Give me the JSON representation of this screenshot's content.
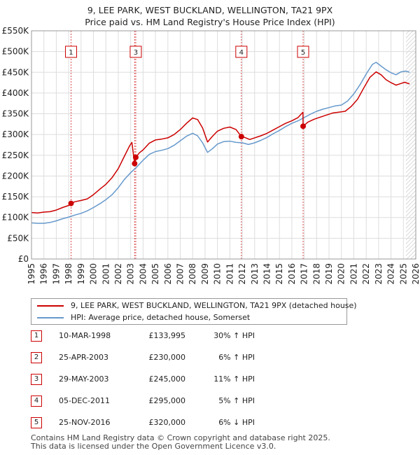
{
  "title_line1": "9, LEE PARK, WEST BUCKLAND, WELLINGTON, TA21 9PX",
  "title_line2": "Price paid vs. HM Land Registry's House Price Index (HPI)",
  "colors": {
    "property": "#cc0000",
    "hpi": "#6699cc",
    "marker_border": "#cc0000",
    "grid": "#dddddd"
  },
  "chart_data": {
    "type": "line",
    "xlim": [
      1995,
      2026
    ],
    "ylim": [
      0,
      550000
    ],
    "y_ticks": [
      {
        "value": 0,
        "label": "£0"
      },
      {
        "value": 50000,
        "label": "£50K"
      },
      {
        "value": 100000,
        "label": "£100K"
      },
      {
        "value": 150000,
        "label": "£150K"
      },
      {
        "value": 200000,
        "label": "£200K"
      },
      {
        "value": 250000,
        "label": "£250K"
      },
      {
        "value": 300000,
        "label": "£300K"
      },
      {
        "value": 350000,
        "label": "£350K"
      },
      {
        "value": 400000,
        "label": "£400K"
      },
      {
        "value": 450000,
        "label": "£450K"
      },
      {
        "value": 500000,
        "label": "£500K"
      },
      {
        "value": 550000,
        "label": "£550K"
      }
    ],
    "x_ticks": [
      "1995",
      "1996",
      "1997",
      "1998",
      "1999",
      "2000",
      "2001",
      "2002",
      "2003",
      "2004",
      "2005",
      "2006",
      "2007",
      "2008",
      "2009",
      "2010",
      "2011",
      "2012",
      "2013",
      "2014",
      "2015",
      "2016",
      "2017",
      "2018",
      "2019",
      "2020",
      "2021",
      "2022",
      "2023",
      "2024",
      "2025",
      "2026"
    ],
    "hatch_from": 2025.2,
    "series": [
      {
        "name": "9, LEE PARK, WEST BUCKLAND, WELLINGTON, TA21 9PX (detached house)",
        "color": "#cc0000",
        "points": [
          [
            1995.0,
            112000
          ],
          [
            1995.5,
            111000
          ],
          [
            1996.0,
            113000
          ],
          [
            1996.5,
            114000
          ],
          [
            1997.0,
            118000
          ],
          [
            1997.5,
            124000
          ],
          [
            1998.0,
            129000
          ],
          [
            1998.19,
            133995
          ],
          [
            1998.5,
            138000
          ],
          [
            1999.0,
            141000
          ],
          [
            1999.5,
            145000
          ],
          [
            2000.0,
            155000
          ],
          [
            2000.5,
            168000
          ],
          [
            2001.0,
            180000
          ],
          [
            2001.5,
            196000
          ],
          [
            2002.0,
            218000
          ],
          [
            2002.5,
            248000
          ],
          [
            2002.9,
            272000
          ],
          [
            2003.1,
            281000
          ],
          [
            2003.32,
            230000
          ],
          [
            2003.41,
            245000
          ],
          [
            2003.7,
            256000
          ],
          [
            2004.0,
            263000
          ],
          [
            2004.5,
            279000
          ],
          [
            2005.0,
            287000
          ],
          [
            2005.5,
            289000
          ],
          [
            2006.0,
            292000
          ],
          [
            2006.5,
            300000
          ],
          [
            2007.0,
            312000
          ],
          [
            2007.5,
            327000
          ],
          [
            2008.0,
            340000
          ],
          [
            2008.4,
            336000
          ],
          [
            2008.8,
            316000
          ],
          [
            2009.2,
            282000
          ],
          [
            2009.6,
            296000
          ],
          [
            2010.0,
            308000
          ],
          [
            2010.5,
            315000
          ],
          [
            2011.0,
            318000
          ],
          [
            2011.5,
            312000
          ],
          [
            2011.93,
            295000
          ],
          [
            2012.2,
            293000
          ],
          [
            2012.6,
            288000
          ],
          [
            2013.0,
            292000
          ],
          [
            2013.5,
            297000
          ],
          [
            2014.0,
            303000
          ],
          [
            2014.5,
            311000
          ],
          [
            2015.0,
            319000
          ],
          [
            2015.5,
            327000
          ],
          [
            2016.0,
            333000
          ],
          [
            2016.5,
            341000
          ],
          [
            2016.9,
            354000
          ],
          [
            2016.91,
            320000
          ],
          [
            2017.3,
            330000
          ],
          [
            2017.8,
            337000
          ],
          [
            2018.3,
            342000
          ],
          [
            2018.8,
            347000
          ],
          [
            2019.3,
            352000
          ],
          [
            2019.8,
            354000
          ],
          [
            2020.3,
            356000
          ],
          [
            2020.8,
            368000
          ],
          [
            2021.3,
            385000
          ],
          [
            2021.8,
            412000
          ],
          [
            2022.3,
            438000
          ],
          [
            2022.8,
            451000
          ],
          [
            2023.2,
            444000
          ],
          [
            2023.6,
            432000
          ],
          [
            2024.0,
            425000
          ],
          [
            2024.4,
            419000
          ],
          [
            2024.8,
            423000
          ],
          [
            2025.1,
            426000
          ],
          [
            2025.5,
            422000
          ]
        ]
      },
      {
        "name": "HPI: Average price, detached house, Somerset",
        "color": "#6699cc",
        "points": [
          [
            1995.0,
            87000
          ],
          [
            1995.5,
            86000
          ],
          [
            1996.0,
            86000
          ],
          [
            1996.5,
            88000
          ],
          [
            1997.0,
            92000
          ],
          [
            1997.5,
            97000
          ],
          [
            1998.0,
            101000
          ],
          [
            1998.5,
            106000
          ],
          [
            1999.0,
            110000
          ],
          [
            1999.5,
            116000
          ],
          [
            2000.0,
            124000
          ],
          [
            2000.5,
            133000
          ],
          [
            2001.0,
            143000
          ],
          [
            2001.5,
            155000
          ],
          [
            2002.0,
            172000
          ],
          [
            2002.5,
            192000
          ],
          [
            2003.0,
            208000
          ],
          [
            2003.5,
            222000
          ],
          [
            2004.0,
            238000
          ],
          [
            2004.5,
            252000
          ],
          [
            2005.0,
            259000
          ],
          [
            2005.5,
            262000
          ],
          [
            2006.0,
            266000
          ],
          [
            2006.5,
            274000
          ],
          [
            2007.0,
            285000
          ],
          [
            2007.5,
            296000
          ],
          [
            2008.0,
            303000
          ],
          [
            2008.4,
            297000
          ],
          [
            2008.8,
            280000
          ],
          [
            2009.2,
            257000
          ],
          [
            2009.6,
            266000
          ],
          [
            2010.0,
            277000
          ],
          [
            2010.5,
            283000
          ],
          [
            2011.0,
            284000
          ],
          [
            2011.5,
            281000
          ],
          [
            2012.0,
            280000
          ],
          [
            2012.5,
            276000
          ],
          [
            2013.0,
            280000
          ],
          [
            2013.5,
            286000
          ],
          [
            2014.0,
            293000
          ],
          [
            2014.5,
            302000
          ],
          [
            2015.0,
            310000
          ],
          [
            2015.5,
            319000
          ],
          [
            2016.0,
            327000
          ],
          [
            2016.5,
            333000
          ],
          [
            2017.0,
            341000
          ],
          [
            2017.5,
            349000
          ],
          [
            2018.0,
            356000
          ],
          [
            2018.5,
            361000
          ],
          [
            2019.0,
            365000
          ],
          [
            2019.5,
            369000
          ],
          [
            2020.0,
            371000
          ],
          [
            2020.5,
            381000
          ],
          [
            2021.0,
            398000
          ],
          [
            2021.5,
            420000
          ],
          [
            2022.0,
            446000
          ],
          [
            2022.5,
            469000
          ],
          [
            2022.8,
            474000
          ],
          [
            2023.2,
            465000
          ],
          [
            2023.6,
            456000
          ],
          [
            2024.0,
            449000
          ],
          [
            2024.4,
            444000
          ],
          [
            2024.8,
            451000
          ],
          [
            2025.2,
            453000
          ],
          [
            2025.5,
            450000
          ]
        ]
      }
    ],
    "markers": [
      {
        "id": "1",
        "x": 1998.19,
        "price": 133995,
        "vline_x": 1998.19
      },
      {
        "id": "2",
        "x": 2003.32,
        "price": 230000,
        "vline_x": 2003.32
      },
      {
        "id": "3",
        "x": 2003.41,
        "price": 245000,
        "vline_x": 2003.41
      },
      {
        "id": "4",
        "x": 2011.93,
        "price": 295000,
        "vline_x": 2011.93
      },
      {
        "id": "5",
        "x": 2016.91,
        "price": 320000,
        "vline_x": 2016.91
      }
    ],
    "box_labels": [
      {
        "id": "1",
        "x": 1998.19
      },
      {
        "id": "3",
        "x": 2003.41
      },
      {
        "id": "4",
        "x": 2011.93
      },
      {
        "id": "5",
        "x": 2016.91
      }
    ]
  },
  "legend": {
    "property_label": "9, LEE PARK, WEST BUCKLAND, WELLINGTON, TA21 9PX (detached house)",
    "hpi_label": "HPI: Average price, detached house, Somerset"
  },
  "sales": [
    {
      "id": "1",
      "date": "10-MAR-1998",
      "price": "£133,995",
      "hpi": "30% ↑ HPI"
    },
    {
      "id": "2",
      "date": "25-APR-2003",
      "price": "£230,000",
      "hpi": "6% ↑ HPI"
    },
    {
      "id": "3",
      "date": "29-MAY-2003",
      "price": "£245,000",
      "hpi": "11% ↑ HPI"
    },
    {
      "id": "4",
      "date": "05-DEC-2011",
      "price": "£295,000",
      "hpi": "5% ↑ HPI"
    },
    {
      "id": "5",
      "date": "25-NOV-2016",
      "price": "£320,000",
      "hpi": "6% ↓ HPI"
    }
  ],
  "footer": {
    "line1": "Contains HM Land Registry data © Crown copyright and database right 2025.",
    "line2": "This data is licensed under the Open Government Licence v3.0."
  }
}
